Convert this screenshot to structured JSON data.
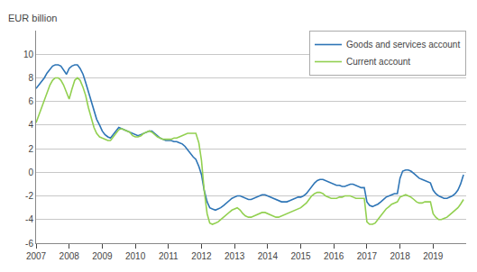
{
  "chart_data": {
    "type": "line",
    "ylabel": "EUR billion",
    "x": [
      2007.0,
      2007.08,
      2007.17,
      2007.25,
      2007.33,
      2007.42,
      2007.5,
      2007.58,
      2007.67,
      2007.75,
      2007.83,
      2007.92,
      2008.0,
      2008.08,
      2008.17,
      2008.25,
      2008.33,
      2008.42,
      2008.5,
      2008.58,
      2008.67,
      2008.75,
      2008.83,
      2008.92,
      2009.0,
      2009.08,
      2009.17,
      2009.25,
      2009.33,
      2009.42,
      2009.5,
      2009.58,
      2009.67,
      2009.75,
      2009.83,
      2009.92,
      2010.0,
      2010.08,
      2010.17,
      2010.25,
      2010.33,
      2010.42,
      2010.5,
      2010.58,
      2010.67,
      2010.75,
      2010.83,
      2010.92,
      2011.0,
      2011.08,
      2011.17,
      2011.25,
      2011.33,
      2011.42,
      2011.5,
      2011.58,
      2011.67,
      2011.75,
      2011.83,
      2011.92,
      2012.0,
      2012.08,
      2012.17,
      2012.25,
      2012.33,
      2012.42,
      2012.5,
      2012.58,
      2012.67,
      2012.75,
      2012.83,
      2012.92,
      2013.0,
      2013.08,
      2013.17,
      2013.25,
      2013.33,
      2013.42,
      2013.5,
      2013.58,
      2013.67,
      2013.75,
      2013.83,
      2013.92,
      2014.0,
      2014.08,
      2014.17,
      2014.25,
      2014.33,
      2014.42,
      2014.5,
      2014.58,
      2014.67,
      2014.75,
      2014.83,
      2014.92,
      2015.0,
      2015.08,
      2015.17,
      2015.25,
      2015.33,
      2015.42,
      2015.5,
      2015.58,
      2015.67,
      2015.75,
      2015.83,
      2015.92,
      2016.0,
      2016.08,
      2016.17,
      2016.25,
      2016.33,
      2016.42,
      2016.5,
      2016.58,
      2016.67,
      2016.75,
      2016.83,
      2016.92,
      2017.0,
      2017.08,
      2017.17,
      2017.25,
      2017.33,
      2017.42,
      2017.5,
      2017.58,
      2017.67,
      2017.75,
      2017.83,
      2017.92,
      2018.0,
      2018.08,
      2018.17,
      2018.25,
      2018.33,
      2018.42,
      2018.5,
      2018.58,
      2018.67,
      2018.75,
      2018.83,
      2018.92,
      2019.0,
      2019.08,
      2019.17,
      2019.25,
      2019.33,
      2019.42,
      2019.5,
      2019.58,
      2019.67,
      2019.75,
      2019.83,
      2019.92
    ],
    "series": [
      {
        "name": "Goods and services account",
        "color": "#2e75b6",
        "values": [
          7.1,
          7.4,
          7.7,
          8.0,
          8.4,
          8.7,
          9.0,
          9.1,
          9.1,
          9.0,
          8.7,
          8.3,
          8.8,
          9.0,
          9.1,
          9.1,
          8.8,
          8.3,
          7.6,
          6.8,
          6.0,
          5.2,
          4.5,
          4.0,
          3.5,
          3.2,
          3.0,
          2.9,
          3.2,
          3.5,
          3.8,
          3.7,
          3.6,
          3.5,
          3.4,
          3.3,
          3.2,
          3.1,
          3.2,
          3.3,
          3.4,
          3.5,
          3.5,
          3.3,
          3.1,
          2.9,
          2.8,
          2.7,
          2.7,
          2.7,
          2.6,
          2.6,
          2.5,
          2.4,
          2.2,
          1.9,
          1.6,
          1.3,
          1.1,
          0.5,
          -0.2,
          -1.5,
          -2.5,
          -3.0,
          -3.1,
          -3.2,
          -3.1,
          -3.0,
          -2.8,
          -2.6,
          -2.4,
          -2.2,
          -2.1,
          -2.0,
          -2.0,
          -2.1,
          -2.2,
          -2.3,
          -2.3,
          -2.2,
          -2.1,
          -2.0,
          -1.9,
          -1.9,
          -2.0,
          -2.1,
          -2.2,
          -2.3,
          -2.4,
          -2.5,
          -2.5,
          -2.5,
          -2.4,
          -2.3,
          -2.2,
          -2.1,
          -2.1,
          -2.0,
          -1.8,
          -1.5,
          -1.2,
          -0.9,
          -0.7,
          -0.6,
          -0.6,
          -0.7,
          -0.8,
          -0.9,
          -1.0,
          -1.1,
          -1.1,
          -1.2,
          -1.2,
          -1.1,
          -1.0,
          -1.0,
          -1.1,
          -1.2,
          -1.3,
          -1.3,
          -2.5,
          -2.8,
          -2.9,
          -2.8,
          -2.7,
          -2.5,
          -2.3,
          -2.1,
          -2.0,
          -1.9,
          -1.8,
          -1.8,
          -0.5,
          0.1,
          0.2,
          0.2,
          0.1,
          -0.1,
          -0.3,
          -0.5,
          -0.6,
          -0.7,
          -0.8,
          -0.9,
          -1.5,
          -1.8,
          -2.0,
          -2.1,
          -2.2,
          -2.2,
          -2.1,
          -2.0,
          -1.8,
          -1.5,
          -1.0,
          -0.2
        ]
      },
      {
        "name": "Current account",
        "color": "#92d050",
        "values": [
          4.2,
          4.8,
          5.5,
          6.2,
          6.8,
          7.4,
          7.8,
          8.0,
          8.0,
          7.8,
          7.4,
          6.8,
          6.2,
          7.0,
          7.8,
          8.0,
          7.8,
          7.2,
          6.5,
          5.5,
          4.5,
          3.8,
          3.3,
          3.0,
          2.9,
          2.8,
          2.7,
          2.7,
          3.0,
          3.3,
          3.6,
          3.7,
          3.6,
          3.5,
          3.4,
          3.1,
          3.0,
          3.0,
          3.1,
          3.3,
          3.4,
          3.5,
          3.4,
          3.2,
          3.0,
          2.9,
          2.8,
          2.8,
          2.8,
          2.8,
          2.9,
          2.9,
          3.0,
          3.1,
          3.2,
          3.3,
          3.3,
          3.3,
          3.3,
          2.5,
          1.0,
          -1.5,
          -3.5,
          -4.3,
          -4.4,
          -4.3,
          -4.2,
          -4.0,
          -3.8,
          -3.6,
          -3.4,
          -3.2,
          -3.1,
          -3.0,
          -3.2,
          -3.5,
          -3.7,
          -3.8,
          -3.8,
          -3.7,
          -3.6,
          -3.5,
          -3.4,
          -3.4,
          -3.5,
          -3.6,
          -3.7,
          -3.8,
          -3.8,
          -3.7,
          -3.6,
          -3.5,
          -3.4,
          -3.3,
          -3.2,
          -3.1,
          -3.0,
          -2.8,
          -2.6,
          -2.3,
          -2.0,
          -1.8,
          -1.7,
          -1.7,
          -1.8,
          -2.0,
          -2.1,
          -2.2,
          -2.2,
          -2.2,
          -2.1,
          -2.1,
          -2.0,
          -2.0,
          -2.0,
          -2.1,
          -2.2,
          -2.2,
          -2.2,
          -2.2,
          -4.2,
          -4.4,
          -4.4,
          -4.3,
          -4.0,
          -3.7,
          -3.4,
          -3.1,
          -2.9,
          -2.7,
          -2.6,
          -2.5,
          -2.1,
          -2.0,
          -1.9,
          -2.0,
          -2.1,
          -2.3,
          -2.5,
          -2.6,
          -2.6,
          -2.5,
          -2.5,
          -2.5,
          -3.5,
          -3.8,
          -4.0,
          -4.0,
          -3.9,
          -3.8,
          -3.6,
          -3.4,
          -3.2,
          -3.0,
          -2.7,
          -2.3
        ]
      }
    ],
    "xlim": [
      2007.0,
      2020.0
    ],
    "xticks": [
      2007,
      2008,
      2009,
      2010,
      2011,
      2012,
      2013,
      2014,
      2015,
      2016,
      2017,
      2018,
      2019
    ],
    "ylim": [
      -6,
      12
    ],
    "yticks": [
      -6,
      -4,
      -2,
      0,
      2,
      4,
      6,
      8,
      10
    ],
    "grid": "y",
    "legend": "upper right"
  }
}
